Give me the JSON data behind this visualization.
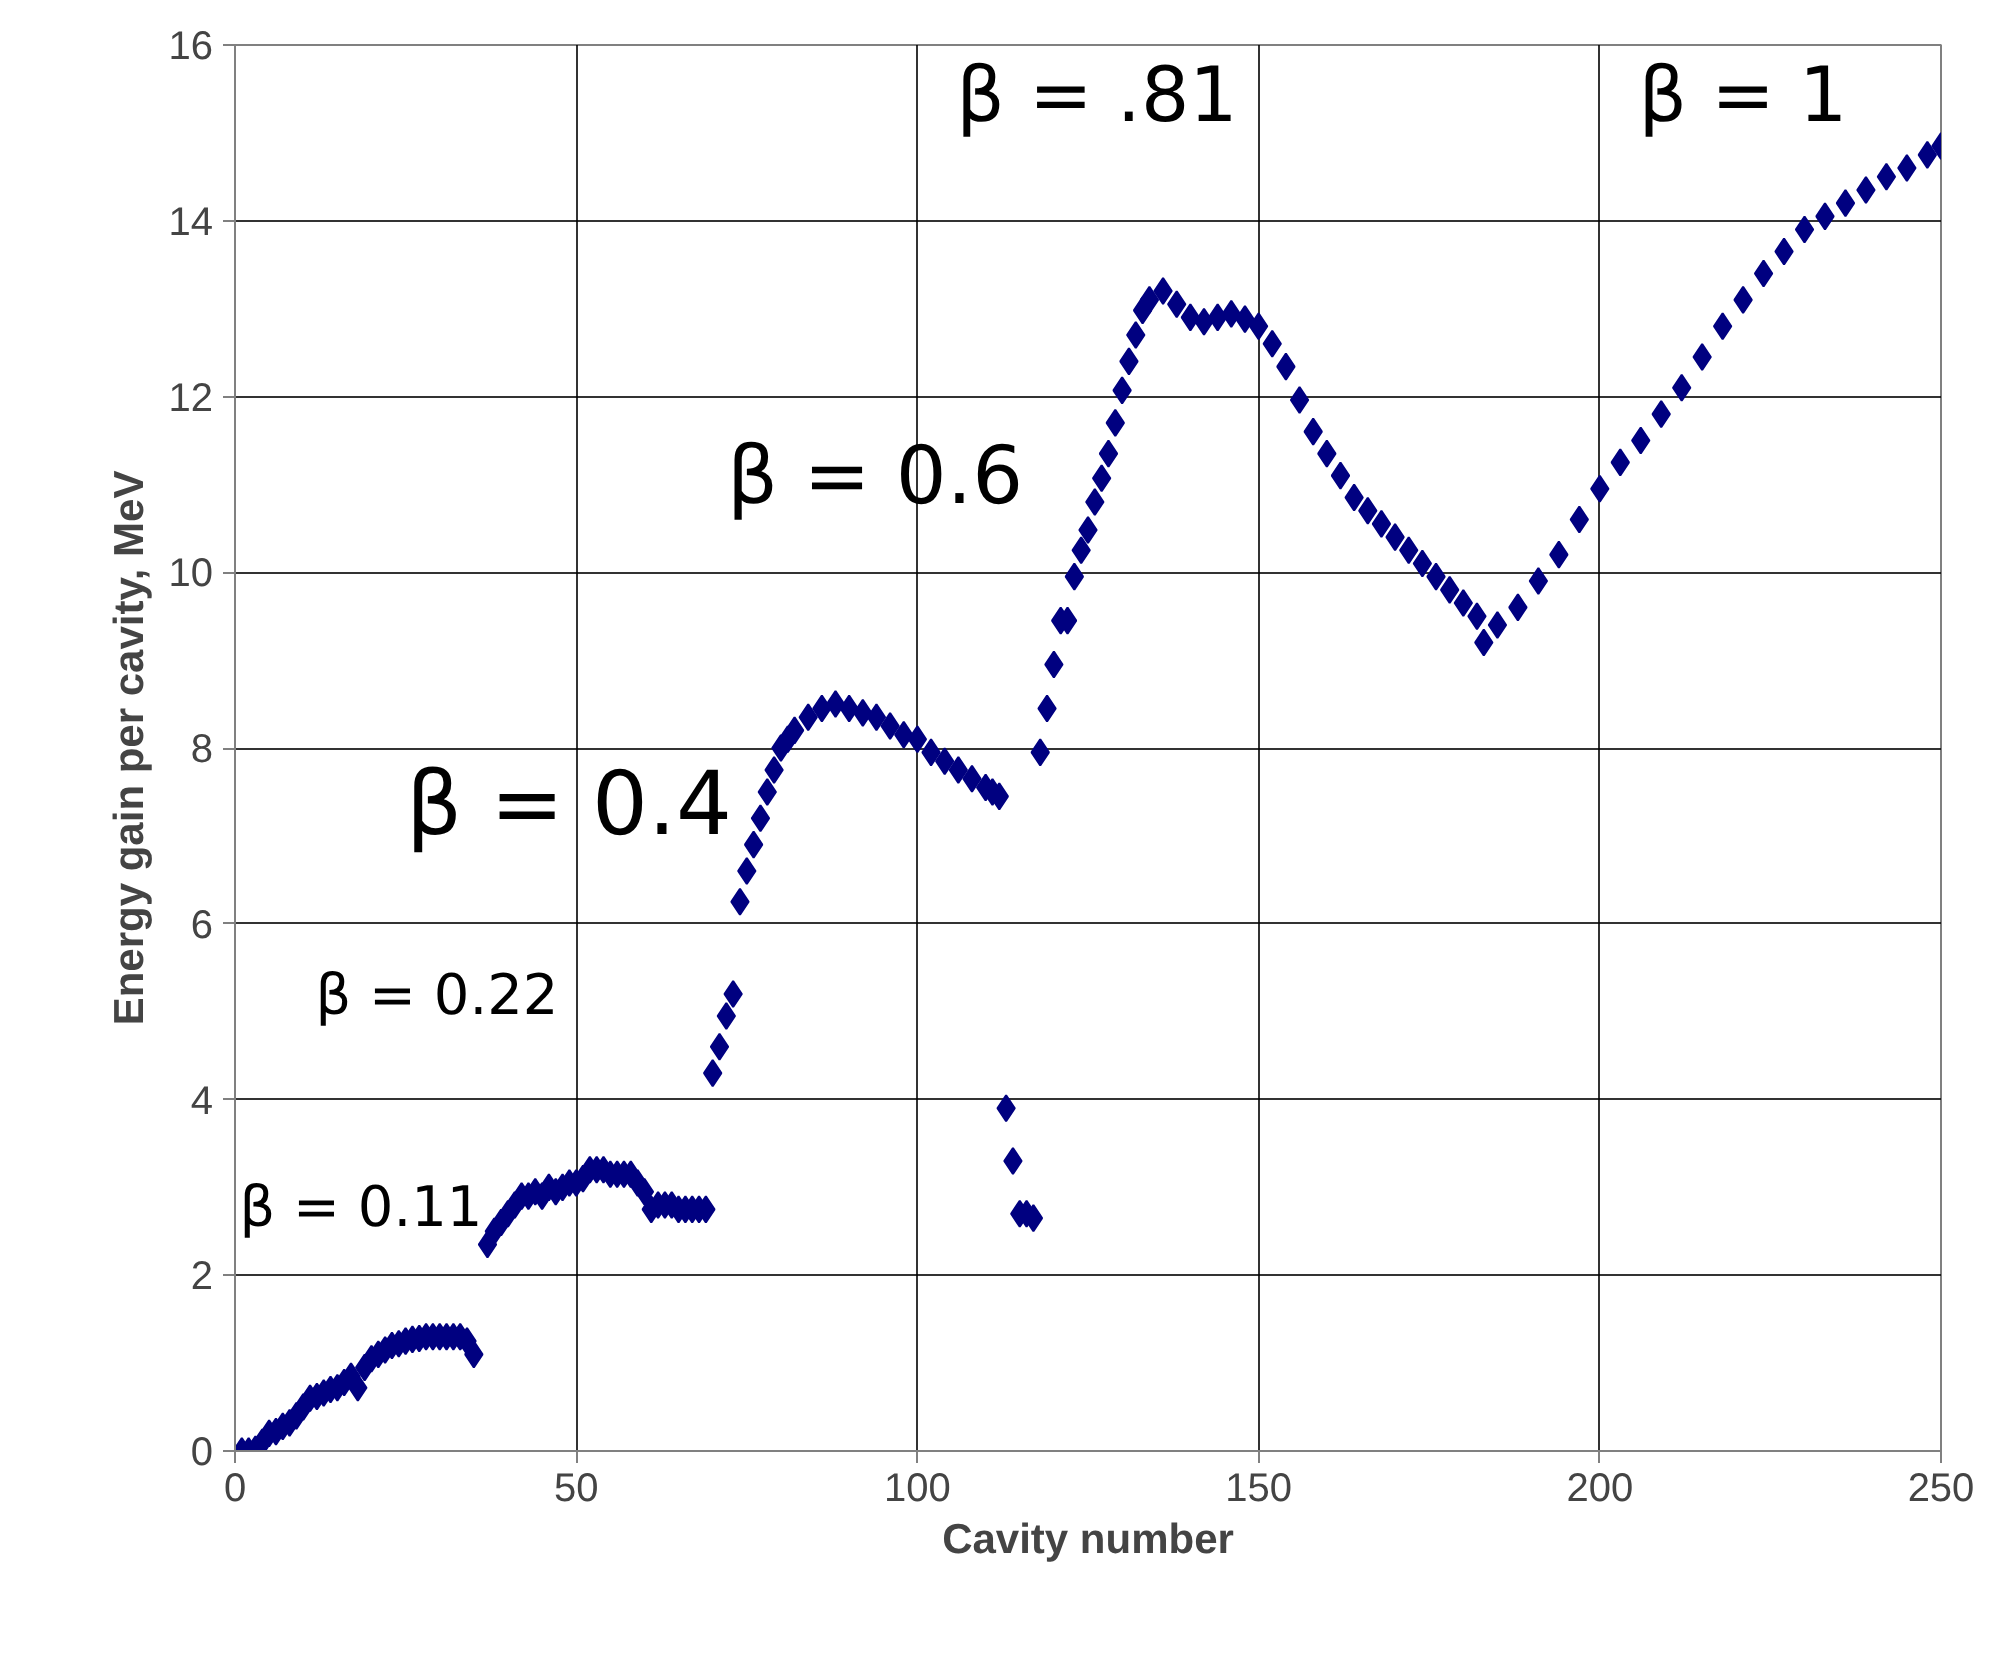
{
  "chart_data": {
    "type": "scatter",
    "xlabel": "Cavity number",
    "ylabel": "Energy gain per cavity, MeV",
    "xlim": [
      0,
      250
    ],
    "xticks": [
      0,
      50,
      100,
      150,
      200,
      250
    ],
    "ylim": [
      0,
      16
    ],
    "yticks": [
      0,
      2,
      4,
      6,
      8,
      10,
      12,
      14,
      16
    ],
    "grid": true,
    "marker": "diamond",
    "series": [
      {
        "color": "#000080",
        "x": [
          1,
          2,
          3,
          4,
          5,
          6,
          7,
          8,
          9,
          10,
          11,
          12,
          13,
          14,
          15,
          16,
          17,
          18,
          19,
          20,
          21,
          22,
          23,
          24,
          25,
          26,
          27,
          28,
          29,
          30,
          31,
          32,
          33,
          34,
          35,
          37,
          38,
          39,
          40,
          41,
          42,
          43,
          44,
          45,
          46,
          47,
          48,
          49,
          50,
          51,
          52,
          53,
          54,
          55,
          56,
          57,
          58,
          59,
          60,
          61,
          62,
          63,
          64,
          65,
          66,
          67,
          68,
          69,
          70,
          71,
          72,
          73,
          74,
          75,
          76,
          77,
          78,
          79,
          80,
          81,
          82,
          84,
          86,
          88,
          90,
          92,
          94,
          96,
          98,
          100,
          102,
          104,
          106,
          108,
          110,
          111,
          112,
          113,
          114,
          115,
          116,
          117,
          118,
          119,
          120,
          121,
          122,
          123,
          124,
          125,
          126,
          127,
          128,
          129,
          130,
          131,
          132,
          133,
          134,
          136,
          138,
          140,
          142,
          144,
          146,
          148,
          150,
          152,
          154,
          156,
          158,
          160,
          162,
          164,
          166,
          168,
          170,
          172,
          174,
          176,
          178,
          180,
          182,
          183,
          185,
          188,
          191,
          194,
          197,
          200,
          203,
          206,
          209,
          212,
          215,
          218,
          221,
          224,
          227,
          230,
          233,
          236,
          239,
          242,
          245,
          248,
          250
        ],
        "values": [
          0,
          0,
          0.02,
          0.1,
          0.2,
          0.22,
          0.28,
          0.32,
          0.4,
          0.5,
          0.6,
          0.62,
          0.66,
          0.7,
          0.72,
          0.78,
          0.85,
          0.72,
          0.95,
          1.05,
          1.1,
          1.15,
          1.2,
          1.22,
          1.25,
          1.27,
          1.28,
          1.3,
          1.3,
          1.3,
          1.3,
          1.3,
          1.3,
          1.25,
          1.1,
          2.35,
          2.5,
          2.6,
          2.7,
          2.8,
          2.9,
          2.9,
          2.95,
          2.9,
          3.0,
          2.95,
          3.0,
          3.05,
          3.05,
          3.1,
          3.2,
          3.2,
          3.2,
          3.15,
          3.15,
          3.15,
          3.15,
          3.05,
          2.95,
          2.75,
          2.8,
          2.8,
          2.8,
          2.75,
          2.75,
          2.75,
          2.75,
          2.75,
          4.3,
          4.6,
          4.95,
          5.2,
          6.25,
          6.6,
          6.9,
          7.2,
          7.5,
          7.75,
          8.0,
          8.1,
          8.2,
          8.35,
          8.45,
          8.5,
          8.45,
          8.4,
          8.35,
          8.25,
          8.15,
          8.1,
          7.95,
          7.85,
          7.75,
          7.65,
          7.55,
          7.5,
          7.45,
          3.9,
          3.3,
          2.7,
          2.7,
          2.65,
          7.95,
          8.45,
          8.95,
          9.45,
          9.45,
          9.95,
          10.25,
          10.48,
          10.8,
          11.07,
          11.35,
          11.7,
          12.07,
          12.4,
          12.7,
          12.98,
          13.1,
          13.2,
          13.05,
          12.9,
          12.85,
          12.9,
          12.94,
          12.88,
          12.8,
          12.6,
          12.34,
          11.96,
          11.6,
          11.35,
          11.1,
          10.85,
          10.7,
          10.55,
          10.4,
          10.25,
          10.1,
          9.95,
          9.8,
          9.65,
          9.5,
          9.2,
          9.4,
          9.6,
          9.9,
          10.2,
          10.6,
          10.95,
          11.25,
          11.5,
          11.8,
          12.1,
          12.45,
          12.8,
          13.1,
          13.4,
          13.65,
          13.9,
          14.05,
          14.2,
          14.35,
          14.5,
          14.6,
          14.75,
          14.85
        ]
      }
    ],
    "annotations": [
      "β = 0.11",
      "β = 0.22",
      "β = 0.4",
      "β = 0.6",
      "β = .81",
      "β = 1"
    ]
  }
}
